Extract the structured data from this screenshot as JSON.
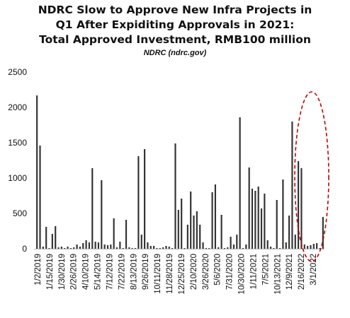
{
  "chart_data": {
    "type": "bar",
    "title_lines": [
      "NDRC Slow to Approve New Infra Projects in",
      "Q1 After Expiditing Approvals in 2021:",
      "Total Approved Investment, RMB100 million"
    ],
    "subtitle": "NDRC (ndrc.gov)",
    "xlabel": "",
    "ylabel": "",
    "ylim": [
      0,
      2500
    ],
    "yticks": [
      0,
      500,
      1000,
      1500,
      2000,
      2500
    ],
    "xtick_labels": [
      "1/2/2019",
      "1/15/2019",
      "1/30/2019",
      "2/26/2019",
      "4/10/2019",
      "5/14/2019",
      "7/12/2019",
      "7/22/2019",
      "8/13/2019",
      "9/26/2019",
      "10/11/2019",
      "11/28/2019",
      "12/25/2019",
      "2/10/2020",
      "3/26/2020",
      "5/6/2020",
      "7/31/2020",
      "10/30/2020",
      "1/11/2021",
      "7/5/2021",
      "10/13/2021",
      "12/9/2021",
      "2/16/2022",
      "3/1/2022"
    ],
    "grid": false,
    "legend": "none",
    "bar_color": "#333333",
    "highlight_color": "#c00000",
    "values": [
      2170,
      1460,
      30,
      310,
      10,
      210,
      320,
      20,
      30,
      10,
      30,
      10,
      20,
      60,
      30,
      80,
      120,
      90,
      1140,
      100,
      90,
      970,
      60,
      50,
      60,
      430,
      20,
      100,
      10,
      410,
      20,
      10,
      10,
      1310,
      200,
      1410,
      90,
      40,
      40,
      10,
      10,
      20,
      40,
      30,
      10,
      1490,
      550,
      710,
      10,
      340,
      810,
      470,
      530,
      340,
      90,
      10,
      10,
      800,
      910,
      20,
      480,
      10,
      20,
      170,
      60,
      200,
      1860,
      10,
      60,
      1150,
      850,
      820,
      880,
      570,
      780,
      120,
      30,
      10,
      690,
      10,
      980,
      90,
      470,
      1800,
      200,
      1240,
      1140,
      60,
      40,
      50,
      70,
      80,
      10,
      450
    ]
  }
}
